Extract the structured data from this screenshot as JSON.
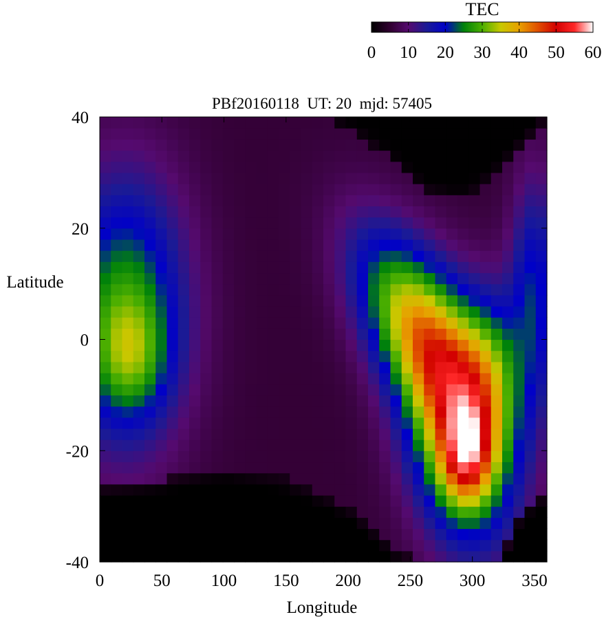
{
  "chart_data": {
    "type": "heatmap",
    "title": "PBf20160118  UT: 20  mjd: 57405",
    "xlabel": "Longitude",
    "ylabel": "Latitude",
    "xlim": [
      0,
      360
    ],
    "ylim": [
      -40,
      40
    ],
    "xticks": [
      0,
      50,
      100,
      150,
      200,
      250,
      300,
      350
    ],
    "yticks": [
      -40,
      -20,
      0,
      20,
      40
    ],
    "grid": false,
    "colorbar": {
      "label": "TEC",
      "range": [
        0,
        60
      ],
      "ticks": [
        0,
        10,
        20,
        30,
        40,
        50,
        60
      ],
      "placement": "top-right",
      "stops": [
        {
          "value": 0,
          "color": "#000000"
        },
        {
          "value": 5,
          "color": "#300030"
        },
        {
          "value": 10,
          "color": "#550a6e"
        },
        {
          "value": 15,
          "color": "#1a1a96"
        },
        {
          "value": 20,
          "color": "#0000c8"
        },
        {
          "value": 25,
          "color": "#00820a"
        },
        {
          "value": 30,
          "color": "#4caf00"
        },
        {
          "value": 35,
          "color": "#c8c800"
        },
        {
          "value": 40,
          "color": "#e8a000"
        },
        {
          "value": 45,
          "color": "#e05000"
        },
        {
          "value": 50,
          "color": "#d20000"
        },
        {
          "value": 55,
          "color": "#ff2828"
        },
        {
          "value": 60,
          "color": "#ffffff"
        }
      ]
    },
    "grid_cells": {
      "lon_step": 9,
      "lat_step": 2,
      "features": [
        {
          "note": "background",
          "value": 5.5
        },
        {
          "lon": 20,
          "lat": 5,
          "amp": 22,
          "sx": 35,
          "sy": 17
        },
        {
          "lon": 25,
          "lat": -3,
          "amp": 10,
          "sx": 20,
          "sy": 7
        },
        {
          "lon": 350,
          "lat": 8,
          "amp": 15,
          "sx": 14,
          "sy": 15
        },
        {
          "lon": 255,
          "lat": 2,
          "amp": 29,
          "sx": 35,
          "sy": 10,
          "tilt": -1.0
        },
        {
          "lon": 290,
          "lat": -16,
          "amp": 32,
          "sx": 30,
          "sy": 14,
          "tilt": -0.5
        },
        {
          "lon": 295,
          "lat": -21,
          "amp": 19,
          "sx": 14,
          "sy": 6
        },
        {
          "lon": 315,
          "lat": -5,
          "amp": 12,
          "sx": 18,
          "sy": 10
        }
      ],
      "dark_regions": [
        {
          "side": "south",
          "boundary": [
            [
              0,
              -26
            ],
            [
              50,
              -25
            ],
            [
              100,
              -23
            ],
            [
              150,
              -25
            ],
            [
              200,
              -30
            ],
            [
              240,
              -38
            ],
            [
              260,
              -40
            ],
            [
              320,
              -40
            ],
            [
              340,
              -30
            ],
            [
              360,
              -27
            ]
          ]
        },
        {
          "side": "north",
          "boundary": [
            [
              180,
              40
            ],
            [
              220,
              35
            ],
            [
              260,
              27
            ],
            [
              290,
              25
            ],
            [
              320,
              30
            ],
            [
              345,
              36
            ],
            [
              360,
              40
            ]
          ]
        }
      ]
    }
  }
}
